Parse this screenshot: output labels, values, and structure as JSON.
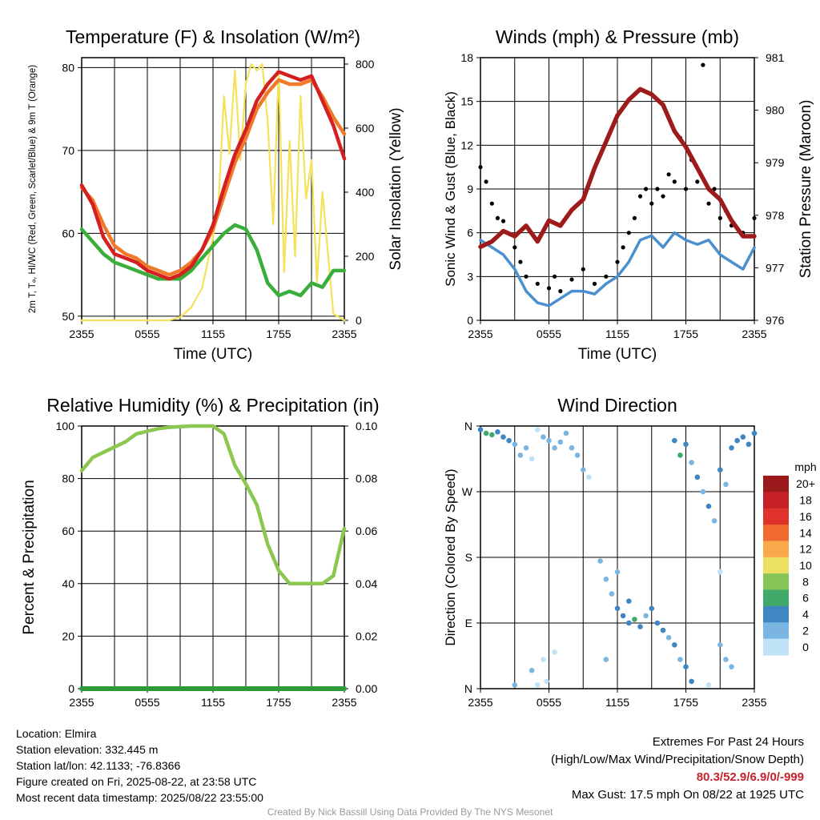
{
  "chart_data": [
    {
      "type": "line",
      "title": "Temperature (F) & Insolation (W/m²)",
      "xlabel": "Time (UTC)",
      "ylabel": "2m T, Tₔ, HI/WC (Red, Green, Scarlet/Blue) & 9m T (Orange)",
      "y2label": "Solar Insolation (Yellow)",
      "x_ticks": [
        "2355",
        "0555",
        "1155",
        "1755",
        "2355"
      ],
      "ylim": [
        49.5,
        81.2
      ],
      "y_ticks": [
        50,
        60,
        70,
        80
      ],
      "y2lim": [
        0,
        820
      ],
      "y2_ticks": [
        0,
        200,
        400,
        600,
        800
      ],
      "grid": true,
      "series": [
        {
          "name": "2m T",
          "color": "#d42020",
          "axis": "left",
          "x": [
            0,
            1,
            2,
            3,
            4,
            5,
            6,
            7,
            8,
            9,
            10,
            11,
            12,
            13,
            14,
            15,
            16,
            17,
            18,
            19,
            20,
            21,
            22,
            23,
            24
          ],
          "values": [
            65.8,
            63.5,
            59.5,
            57.5,
            57,
            56.5,
            55.5,
            55,
            54.5,
            55,
            56,
            58,
            61,
            65.5,
            69.5,
            72.5,
            76,
            78,
            79.5,
            79,
            78.5,
            79,
            76,
            73,
            69
          ]
        },
        {
          "name": "9m T",
          "color": "#ef7b2a",
          "axis": "left",
          "x": [
            0,
            1,
            2,
            3,
            4,
            5,
            6,
            7,
            8,
            9,
            10,
            11,
            12,
            13,
            14,
            15,
            16,
            17,
            18,
            19,
            20,
            21,
            22,
            23,
            24
          ],
          "values": [
            65.5,
            64,
            61,
            58.5,
            57.5,
            57,
            56,
            55.5,
            55,
            55.5,
            56.5,
            58,
            60.5,
            64.5,
            68.5,
            71.5,
            75,
            77,
            78.5,
            78,
            78,
            78.5,
            76.5,
            74,
            72
          ]
        },
        {
          "name": "Tₔ",
          "color": "#3aae3a",
          "axis": "left",
          "x": [
            0,
            1,
            2,
            3,
            4,
            5,
            6,
            7,
            8,
            9,
            10,
            11,
            12,
            13,
            14,
            15,
            16,
            17,
            18,
            19,
            20,
            21,
            22,
            23,
            24
          ],
          "values": [
            60.5,
            59,
            57.5,
            56.5,
            56,
            55.5,
            55,
            54.5,
            54.5,
            54.5,
            55.5,
            57,
            58.5,
            60,
            61,
            60.5,
            58,
            54,
            52.5,
            53,
            52.5,
            54,
            53.5,
            55.5,
            55.5
          ]
        },
        {
          "name": "Solar Insolation",
          "color": "#f5e15a",
          "axis": "right",
          "x": [
            0,
            3,
            6,
            8,
            9,
            10,
            11,
            11.5,
            12,
            12.5,
            13,
            13.5,
            14,
            14.5,
            15,
            15.5,
            16,
            16.5,
            17,
            17.5,
            18,
            18.5,
            19,
            19.5,
            20,
            20.5,
            21,
            21.5,
            22,
            23,
            24
          ],
          "values": [
            0,
            0,
            0,
            0,
            10,
            40,
            100,
            180,
            260,
            360,
            700,
            520,
            780,
            500,
            740,
            800,
            780,
            800,
            620,
            300,
            780,
            150,
            560,
            200,
            700,
            380,
            500,
            120,
            400,
            20,
            0
          ]
        }
      ]
    },
    {
      "type": "line",
      "title": "Winds (mph) & Pressure (mb)",
      "xlabel": "Time (UTC)",
      "ylabel": "Sonic Wind & Gust (Blue, Black)",
      "y2label": "Station Pressure (Maroon)",
      "x_ticks": [
        "2355",
        "0555",
        "1155",
        "1755",
        "2355"
      ],
      "ylim": [
        0,
        18
      ],
      "y_ticks": [
        0,
        3,
        6,
        9,
        12,
        15,
        18
      ],
      "y2lim": [
        976,
        981
      ],
      "y2_ticks": [
        976,
        977,
        978,
        979,
        980,
        981
      ],
      "grid": true,
      "series": [
        {
          "name": "Sonic Wind",
          "color": "#4a90cf",
          "axis": "left",
          "x": [
            0,
            1,
            2,
            3,
            4,
            5,
            6,
            7,
            8,
            9,
            10,
            11,
            12,
            13,
            14,
            15,
            16,
            17,
            18,
            19,
            20,
            21,
            22,
            23,
            24
          ],
          "values": [
            5.5,
            5,
            4.5,
            3.5,
            2,
            1.2,
            1,
            1.5,
            2,
            2,
            1.8,
            2.5,
            3,
            4,
            5.5,
            5.8,
            5,
            6,
            5.5,
            5.2,
            5.5,
            4.5,
            4,
            3.5,
            5
          ]
        },
        {
          "name": "Gust",
          "color": "#000000",
          "axis": "left",
          "marker": "dot",
          "x": [
            0,
            0.5,
            1,
            1.5,
            2,
            3,
            3.5,
            4,
            5,
            6,
            6.5,
            7,
            8,
            9,
            10,
            11,
            12,
            12.5,
            13,
            13.5,
            14,
            14.5,
            15,
            15.5,
            16,
            16.5,
            17,
            17.5,
            18,
            18.5,
            19,
            19.5,
            20,
            20.5,
            21,
            21.5,
            22,
            23,
            24
          ],
          "values": [
            10.5,
            9.5,
            8,
            7,
            6.8,
            5,
            4,
            3,
            2.5,
            2.2,
            3,
            2,
            2.8,
            3.5,
            2.5,
            3,
            4,
            5,
            6,
            7,
            8.5,
            9,
            8,
            9,
            8.5,
            10,
            9.5,
            12.5,
            9,
            11,
            9.5,
            17.5,
            8,
            9,
            7,
            7.5,
            6.5,
            6,
            7
          ]
        },
        {
          "name": "Station Pressure",
          "color": "#9e1b1b",
          "axis": "right",
          "x": [
            0,
            1,
            2,
            3,
            4,
            5,
            6,
            7,
            8,
            9,
            10,
            11,
            12,
            13,
            14,
            15,
            16,
            17,
            18,
            19,
            20,
            21,
            22,
            23,
            24
          ],
          "values": [
            977.4,
            977.5,
            977.7,
            977.6,
            977.8,
            977.5,
            977.9,
            977.8,
            978.1,
            978.3,
            978.9,
            979.4,
            979.9,
            980.2,
            980.4,
            980.3,
            980.1,
            979.6,
            979.3,
            978.9,
            978.5,
            978.3,
            977.9,
            977.6,
            977.6
          ]
        }
      ]
    },
    {
      "type": "line",
      "title": "Relative Humidity (%) & Precipitation (in)",
      "ylabel": "Percent & Precipitation",
      "x_ticks": [
        "2355",
        "0555",
        "1155",
        "1755",
        "2355"
      ],
      "ylim": [
        0,
        100
      ],
      "y_ticks": [
        0,
        20,
        40,
        60,
        80,
        100
      ],
      "y2lim": [
        0,
        0.1
      ],
      "y2_ticks": [
        "0.00",
        "0.02",
        "0.04",
        "0.06",
        "0.08",
        "0.10"
      ],
      "grid": true,
      "series": [
        {
          "name": "Relative Humidity",
          "color": "#8cc751",
          "axis": "left",
          "x": [
            0,
            1,
            2,
            3,
            4,
            5,
            6,
            7,
            8,
            9,
            10,
            11,
            12,
            13,
            14,
            15,
            16,
            17,
            18,
            19,
            20,
            21,
            22,
            23,
            24
          ],
          "values": [
            83,
            88,
            90,
            92,
            94,
            97,
            98,
            99,
            99.5,
            99.8,
            100,
            100,
            100,
            97,
            85,
            78,
            70,
            55,
            45,
            40,
            40,
            40,
            40,
            43,
            61
          ]
        },
        {
          "name": "Precipitation",
          "color": "#2e9a3a",
          "axis": "right",
          "x": [
            0,
            24
          ],
          "values": [
            0,
            0
          ]
        }
      ]
    },
    {
      "type": "scatter",
      "title": "Wind Direction",
      "ylabel": "Direction (Colored By Speed)",
      "x_ticks": [
        "2355",
        "0555",
        "1155",
        "1755",
        "2355"
      ],
      "y_ticks": [
        "N",
        "E",
        "S",
        "W",
        "N"
      ],
      "ylim": [
        0,
        360
      ],
      "grid": true,
      "colorbar": {
        "title": "mph",
        "labels": [
          "20+",
          "18",
          "16",
          "14",
          "12",
          "10",
          "8",
          "6",
          "4",
          "2",
          "0"
        ],
        "colors": [
          "#9c1a1c",
          "#c62127",
          "#e0312a",
          "#f06a30",
          "#f9a84a",
          "#ece062",
          "#86c659",
          "#41a96a",
          "#3f86c2",
          "#7bb6e3",
          "#bfe2f7"
        ]
      },
      "points": [
        {
          "x": 0,
          "dir": 355,
          "spd": 5
        },
        {
          "x": 0.5,
          "dir": 350,
          "spd": 7
        },
        {
          "x": 1,
          "dir": 348,
          "spd": 6
        },
        {
          "x": 1.5,
          "dir": 352,
          "spd": 5
        },
        {
          "x": 2,
          "dir": 345,
          "spd": 4
        },
        {
          "x": 2.5,
          "dir": 340,
          "spd": 4
        },
        {
          "x": 3,
          "dir": 335,
          "spd": 3
        },
        {
          "x": 3.5,
          "dir": 320,
          "spd": 2
        },
        {
          "x": 4,
          "dir": 330,
          "spd": 3
        },
        {
          "x": 4.5,
          "dir": 315,
          "spd": 1
        },
        {
          "x": 5,
          "dir": 355,
          "spd": 1
        },
        {
          "x": 5.5,
          "dir": 345,
          "spd": 2
        },
        {
          "x": 6,
          "dir": 340,
          "spd": 3
        },
        {
          "x": 6.5,
          "dir": 330,
          "spd": 2
        },
        {
          "x": 7,
          "dir": 338,
          "spd": 3
        },
        {
          "x": 7.5,
          "dir": 350,
          "spd": 2
        },
        {
          "x": 8,
          "dir": 330,
          "spd": 2
        },
        {
          "x": 8.5,
          "dir": 320,
          "spd": 3
        },
        {
          "x": 9,
          "dir": 300,
          "spd": 2
        },
        {
          "x": 9.5,
          "dir": 290,
          "spd": 1
        },
        {
          "x": 5,
          "dir": 5,
          "spd": 1
        },
        {
          "x": 5.8,
          "dir": 10,
          "spd": 1
        },
        {
          "x": 4.5,
          "dir": 25,
          "spd": 2
        },
        {
          "x": 3,
          "dir": 5,
          "spd": 2
        },
        {
          "x": 10.5,
          "dir": 175,
          "spd": 3
        },
        {
          "x": 11,
          "dir": 150,
          "spd": 2
        },
        {
          "x": 11.5,
          "dir": 130,
          "spd": 3
        },
        {
          "x": 12,
          "dir": 110,
          "spd": 4
        },
        {
          "x": 12.5,
          "dir": 100,
          "spd": 4
        },
        {
          "x": 13,
          "dir": 90,
          "spd": 5
        },
        {
          "x": 13.5,
          "dir": 95,
          "spd": 6
        },
        {
          "x": 14,
          "dir": 85,
          "spd": 4
        },
        {
          "x": 14.5,
          "dir": 100,
          "spd": 3
        },
        {
          "x": 15,
          "dir": 110,
          "spd": 4
        },
        {
          "x": 15.5,
          "dir": 90,
          "spd": 5
        },
        {
          "x": 16,
          "dir": 80,
          "spd": 4
        },
        {
          "x": 16.5,
          "dir": 70,
          "spd": 3
        },
        {
          "x": 17,
          "dir": 60,
          "spd": 4
        },
        {
          "x": 17.5,
          "dir": 40,
          "spd": 3
        },
        {
          "x": 18,
          "dir": 30,
          "spd": 4
        },
        {
          "x": 18.5,
          "dir": 10,
          "spd": 5
        },
        {
          "x": 13,
          "dir": 120,
          "spd": 4
        },
        {
          "x": 12,
          "dir": 160,
          "spd": 2
        },
        {
          "x": 11,
          "dir": 40,
          "spd": 2
        },
        {
          "x": 17,
          "dir": 340,
          "spd": 4
        },
        {
          "x": 17.5,
          "dir": 320,
          "spd": 6
        },
        {
          "x": 18,
          "dir": 335,
          "spd": 4
        },
        {
          "x": 18.5,
          "dir": 310,
          "spd": 3
        },
        {
          "x": 19,
          "dir": 290,
          "spd": 4
        },
        {
          "x": 19.5,
          "dir": 270,
          "spd": 3
        },
        {
          "x": 20,
          "dir": 250,
          "spd": 4
        },
        {
          "x": 20.5,
          "dir": 230,
          "spd": 3
        },
        {
          "x": 21,
          "dir": 300,
          "spd": 4
        },
        {
          "x": 21.5,
          "dir": 280,
          "spd": 3
        },
        {
          "x": 22,
          "dir": 330,
          "spd": 4
        },
        {
          "x": 22.5,
          "dir": 340,
          "spd": 4
        },
        {
          "x": 23,
          "dir": 345,
          "spd": 5
        },
        {
          "x": 23.5,
          "dir": 335,
          "spd": 4
        },
        {
          "x": 24,
          "dir": 350,
          "spd": 4
        },
        {
          "x": 21,
          "dir": 60,
          "spd": 3
        },
        {
          "x": 21.5,
          "dir": 40,
          "spd": 2
        },
        {
          "x": 22,
          "dir": 30,
          "spd": 2
        },
        {
          "x": 21,
          "dir": 160,
          "spd": 1
        },
        {
          "x": 20,
          "dir": 5,
          "spd": 1
        },
        {
          "x": 6.5,
          "dir": 50,
          "spd": 1
        },
        {
          "x": 5.5,
          "dir": 40,
          "spd": 1
        }
      ]
    }
  ],
  "location_info": {
    "location": "Location: Elmira",
    "elevation": "Station elevation: 332.445 m",
    "latlon": "Station lat/lon: 42.1133; -76.8366",
    "created": "Figure created on Fri, 2025-08-22, at 23:58 UTC",
    "recent": "Most recent data timestamp: 2025/08/22 23:55:00"
  },
  "extremes": {
    "title": "Extremes For Past 24 Hours",
    "subtitle": "(High/Low/Max Wind/Precipitation/Snow Depth)",
    "values": "80.3/52.9/6.9/0/-999",
    "max_gust": "Max Gust: 17.5 mph On 08/22 at 1925 UTC"
  },
  "credit": "Created By Nick Bassill Using Data Provided By The NYS Mesonet"
}
